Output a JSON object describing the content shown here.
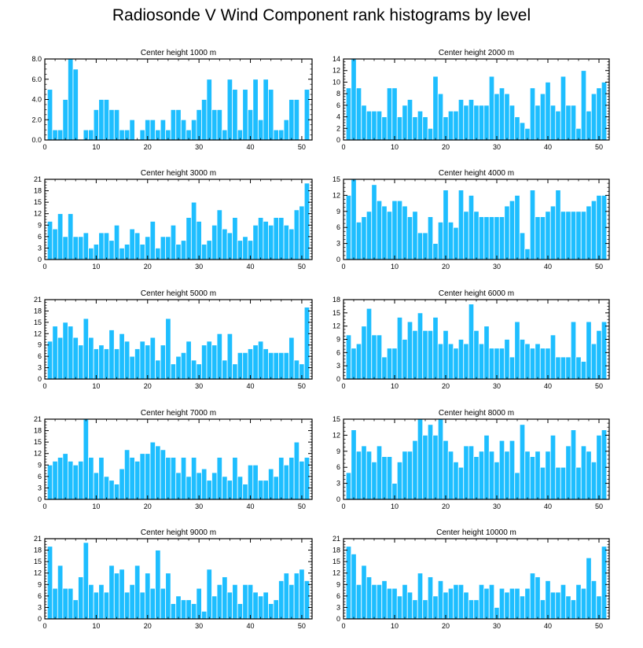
{
  "figure_title": "Radiosonde V Wind Component rank histograms by level",
  "colors": {
    "bar": "#1ebeff",
    "bar_edge": "#ffffff",
    "axis": "#000000"
  },
  "chart_data": [
    {
      "type": "bar",
      "title": "Center height 1000 m",
      "xlabel": "",
      "ylabel": "",
      "xlim": [
        0,
        52
      ],
      "ylim": [
        0,
        8
      ],
      "yticks": [
        0,
        2,
        4,
        6,
        8
      ],
      "ytick_labels": [
        "0.0",
        "2.0",
        "4.0",
        "6.0",
        "8.0"
      ],
      "xticks": [
        0,
        10,
        20,
        30,
        40,
        50
      ],
      "xtick_labels": [
        "0",
        "10",
        "20",
        "30",
        "40",
        "50"
      ],
      "x": [
        1,
        2,
        3,
        4,
        5,
        6,
        7,
        8,
        9,
        10,
        11,
        12,
        13,
        14,
        15,
        16,
        17,
        18,
        19,
        20,
        21,
        22,
        23,
        24,
        25,
        26,
        27,
        28,
        29,
        30,
        31,
        32,
        33,
        34,
        35,
        36,
        37,
        38,
        39,
        40,
        41,
        42,
        43,
        44,
        45,
        46,
        47,
        48,
        49,
        50,
        51
      ],
      "values": [
        5,
        1,
        1,
        4,
        8,
        7,
        0,
        1,
        1,
        3,
        4,
        4,
        3,
        3,
        1,
        1,
        2,
        0,
        1,
        2,
        2,
        1,
        2,
        1,
        3,
        3,
        2,
        1,
        2,
        3,
        4,
        6,
        3,
        3,
        1,
        6,
        5,
        1,
        5,
        3,
        6,
        2,
        6,
        5,
        1,
        1,
        2,
        4,
        4,
        0,
        5
      ]
    },
    {
      "type": "bar",
      "title": "Center height 2000 m",
      "xlabel": "",
      "ylabel": "",
      "xlim": [
        0,
        52
      ],
      "ylim": [
        0,
        14
      ],
      "yticks": [
        0,
        2,
        4,
        6,
        8,
        10,
        12,
        14
      ],
      "ytick_labels": [
        "0",
        "2",
        "4",
        "6",
        "8",
        "10",
        "12",
        "14"
      ],
      "xticks": [
        0,
        10,
        20,
        30,
        40,
        50
      ],
      "xtick_labels": [
        "0",
        "10",
        "20",
        "30",
        "40",
        "50"
      ],
      "x": [
        1,
        2,
        3,
        4,
        5,
        6,
        7,
        8,
        9,
        10,
        11,
        12,
        13,
        14,
        15,
        16,
        17,
        18,
        19,
        20,
        21,
        22,
        23,
        24,
        25,
        26,
        27,
        28,
        29,
        30,
        31,
        32,
        33,
        34,
        35,
        36,
        37,
        38,
        39,
        40,
        41,
        42,
        43,
        44,
        45,
        46,
        47,
        48,
        49,
        50,
        51
      ],
      "values": [
        9,
        14,
        9,
        6,
        5,
        5,
        5,
        4,
        9,
        9,
        4,
        6,
        7,
        4,
        5,
        4,
        2,
        11,
        8,
        4,
        5,
        5,
        7,
        6,
        7,
        6,
        6,
        6,
        11,
        8,
        9,
        8,
        6,
        4,
        3,
        2,
        9,
        6,
        8,
        10,
        6,
        5,
        11,
        6,
        6,
        2,
        12,
        5,
        8,
        9,
        10
      ]
    },
    {
      "type": "bar",
      "title": "Center height 3000 m",
      "xlabel": "",
      "ylabel": "",
      "xlim": [
        0,
        52
      ],
      "ylim": [
        0,
        21
      ],
      "yticks": [
        0,
        3,
        6,
        9,
        12,
        15,
        18,
        21
      ],
      "ytick_labels": [
        "0",
        "3",
        "6",
        "9",
        "12",
        "15",
        "18",
        "21"
      ],
      "xticks": [
        0,
        10,
        20,
        30,
        40,
        50
      ],
      "xtick_labels": [
        "0",
        "10",
        "20",
        "30",
        "40",
        "50"
      ],
      "x": [
        1,
        2,
        3,
        4,
        5,
        6,
        7,
        8,
        9,
        10,
        11,
        12,
        13,
        14,
        15,
        16,
        17,
        18,
        19,
        20,
        21,
        22,
        23,
        24,
        25,
        26,
        27,
        28,
        29,
        30,
        31,
        32,
        33,
        34,
        35,
        36,
        37,
        38,
        39,
        40,
        41,
        42,
        43,
        44,
        45,
        46,
        47,
        48,
        49,
        50,
        51
      ],
      "values": [
        10,
        8,
        12,
        6,
        12,
        6,
        6,
        7,
        3,
        4,
        7,
        7,
        5,
        9,
        3,
        4,
        8,
        7,
        4,
        6,
        10,
        3,
        6,
        6,
        9,
        4,
        5,
        11,
        15,
        10,
        4,
        5,
        9,
        13,
        8,
        7,
        11,
        5,
        6,
        5,
        9,
        11,
        10,
        9,
        11,
        11,
        9,
        8,
        13,
        14,
        20
      ]
    },
    {
      "type": "bar",
      "title": "Center height 4000 m",
      "xlabel": "",
      "ylabel": "",
      "xlim": [
        0,
        52
      ],
      "ylim": [
        0,
        15
      ],
      "yticks": [
        0,
        3,
        6,
        9,
        12,
        15
      ],
      "ytick_labels": [
        "0",
        "3",
        "6",
        "9",
        "12",
        "15"
      ],
      "xticks": [
        0,
        10,
        20,
        30,
        40,
        50
      ],
      "xtick_labels": [
        "0",
        "10",
        "20",
        "30",
        "40",
        "50"
      ],
      "x": [
        1,
        2,
        3,
        4,
        5,
        6,
        7,
        8,
        9,
        10,
        11,
        12,
        13,
        14,
        15,
        16,
        17,
        18,
        19,
        20,
        21,
        22,
        23,
        24,
        25,
        26,
        27,
        28,
        29,
        30,
        31,
        32,
        33,
        34,
        35,
        36,
        37,
        38,
        39,
        40,
        41,
        42,
        43,
        44,
        45,
        46,
        47,
        48,
        49,
        50,
        51
      ],
      "values": [
        12,
        15,
        7,
        8,
        9,
        14,
        11,
        10,
        9,
        11,
        11,
        10,
        8,
        9,
        5,
        5,
        8,
        3,
        7,
        13,
        7,
        6,
        13,
        9,
        12,
        9,
        8,
        8,
        8,
        8,
        8,
        10,
        11,
        12,
        5,
        2,
        13,
        8,
        8,
        9,
        10,
        13,
        9,
        9,
        9,
        9,
        9,
        10,
        11,
        12,
        12
      ]
    },
    {
      "type": "bar",
      "title": "Center height 5000 m",
      "xlabel": "",
      "ylabel": "",
      "xlim": [
        0,
        52
      ],
      "ylim": [
        0,
        21
      ],
      "yticks": [
        0,
        3,
        6,
        9,
        12,
        15,
        18,
        21
      ],
      "ytick_labels": [
        "0",
        "3",
        "6",
        "9",
        "12",
        "15",
        "18",
        "21"
      ],
      "xticks": [
        0,
        10,
        20,
        30,
        40,
        50
      ],
      "xtick_labels": [
        "0",
        "10",
        "20",
        "30",
        "40",
        "50"
      ],
      "x": [
        1,
        2,
        3,
        4,
        5,
        6,
        7,
        8,
        9,
        10,
        11,
        12,
        13,
        14,
        15,
        16,
        17,
        18,
        19,
        20,
        21,
        22,
        23,
        24,
        25,
        26,
        27,
        28,
        29,
        30,
        31,
        32,
        33,
        34,
        35,
        36,
        37,
        38,
        39,
        40,
        41,
        42,
        43,
        44,
        45,
        46,
        47,
        48,
        49,
        50,
        51
      ],
      "values": [
        10,
        14,
        11,
        15,
        14,
        11,
        9,
        16,
        11,
        8,
        9,
        8,
        13,
        8,
        12,
        10,
        6,
        8,
        10,
        9,
        11,
        5,
        9,
        16,
        4,
        6,
        7,
        10,
        5,
        4,
        9,
        10,
        9,
        12,
        5,
        12,
        4,
        7,
        7,
        8,
        9,
        10,
        8,
        7,
        7,
        7,
        7,
        11,
        5,
        4,
        19
      ]
    },
    {
      "type": "bar",
      "title": "Center height 6000 m",
      "xlabel": "",
      "ylabel": "",
      "xlim": [
        0,
        52
      ],
      "ylim": [
        0,
        18
      ],
      "yticks": [
        0,
        3,
        6,
        9,
        12,
        15,
        18
      ],
      "ytick_labels": [
        "0",
        "3",
        "6",
        "9",
        "12",
        "15",
        "18"
      ],
      "xticks": [
        0,
        10,
        20,
        30,
        40,
        50
      ],
      "xtick_labels": [
        "0",
        "10",
        "20",
        "30",
        "40",
        "50"
      ],
      "x": [
        1,
        2,
        3,
        4,
        5,
        6,
        7,
        8,
        9,
        10,
        11,
        12,
        13,
        14,
        15,
        16,
        17,
        18,
        19,
        20,
        21,
        22,
        23,
        24,
        25,
        26,
        27,
        28,
        29,
        30,
        31,
        32,
        33,
        34,
        35,
        36,
        37,
        38,
        39,
        40,
        41,
        42,
        43,
        44,
        45,
        46,
        47,
        48,
        49,
        50,
        51
      ],
      "values": [
        10,
        7,
        8,
        12,
        16,
        10,
        10,
        5,
        7,
        7,
        14,
        9,
        13,
        11,
        15,
        11,
        11,
        14,
        8,
        11,
        8,
        7,
        9,
        8,
        17,
        11,
        8,
        12,
        7,
        7,
        7,
        9,
        5,
        13,
        9,
        8,
        7,
        8,
        7,
        7,
        10,
        5,
        5,
        5,
        13,
        5,
        4,
        13,
        8,
        11,
        13
      ]
    },
    {
      "type": "bar",
      "title": "Center height 7000 m",
      "xlabel": "",
      "ylabel": "",
      "xlim": [
        0,
        52
      ],
      "ylim": [
        0,
        21
      ],
      "yticks": [
        0,
        3,
        6,
        9,
        12,
        15,
        18,
        21
      ],
      "ytick_labels": [
        "0",
        "3",
        "6",
        "9",
        "12",
        "15",
        "18",
        "21"
      ],
      "xticks": [
        0,
        10,
        20,
        30,
        40,
        50
      ],
      "xtick_labels": [
        "0",
        "10",
        "20",
        "30",
        "40",
        "50"
      ],
      "x": [
        1,
        2,
        3,
        4,
        5,
        6,
        7,
        8,
        9,
        10,
        11,
        12,
        13,
        14,
        15,
        16,
        17,
        18,
        19,
        20,
        21,
        22,
        23,
        24,
        25,
        26,
        27,
        28,
        29,
        30,
        31,
        32,
        33,
        34,
        35,
        36,
        37,
        38,
        39,
        40,
        41,
        42,
        43,
        44,
        45,
        46,
        47,
        48,
        49,
        50,
        51
      ],
      "values": [
        9,
        10,
        11,
        12,
        10,
        9,
        10,
        21,
        11,
        7,
        11,
        6,
        5,
        4,
        8,
        13,
        11,
        10,
        12,
        12,
        15,
        14,
        13,
        11,
        11,
        7,
        11,
        6,
        11,
        7,
        8,
        5,
        7,
        11,
        6,
        5,
        11,
        6,
        4,
        9,
        9,
        5,
        5,
        8,
        6,
        11,
        9,
        11,
        15,
        10,
        11
      ]
    },
    {
      "type": "bar",
      "title": "Center height 8000 m",
      "xlabel": "",
      "ylabel": "",
      "xlim": [
        0,
        52
      ],
      "ylim": [
        0,
        15
      ],
      "yticks": [
        0,
        3,
        6,
        9,
        12,
        15
      ],
      "ytick_labels": [
        "0",
        "3",
        "6",
        "9",
        "12",
        "15"
      ],
      "xticks": [
        0,
        10,
        20,
        30,
        40,
        50
      ],
      "xtick_labels": [
        "0",
        "10",
        "20",
        "30",
        "40",
        "50"
      ],
      "x": [
        1,
        2,
        3,
        4,
        5,
        6,
        7,
        8,
        9,
        10,
        11,
        12,
        13,
        14,
        15,
        16,
        17,
        18,
        19,
        20,
        21,
        22,
        23,
        24,
        25,
        26,
        27,
        28,
        29,
        30,
        31,
        32,
        33,
        34,
        35,
        36,
        37,
        38,
        39,
        40,
        41,
        42,
        43,
        44,
        45,
        46,
        47,
        48,
        49,
        50,
        51
      ],
      "values": [
        5,
        13,
        9,
        10,
        9,
        7,
        10,
        8,
        8,
        3,
        7,
        9,
        9,
        11,
        15,
        12,
        14,
        12,
        15,
        11,
        9,
        7,
        6,
        10,
        10,
        8,
        9,
        12,
        9,
        7,
        11,
        9,
        11,
        5,
        14,
        9,
        8,
        9,
        6,
        9,
        12,
        6,
        6,
        10,
        13,
        6,
        10,
        9,
        7,
        12,
        13
      ]
    },
    {
      "type": "bar",
      "title": "Center height 9000 m",
      "xlabel": "",
      "ylabel": "",
      "xlim": [
        0,
        52
      ],
      "ylim": [
        0,
        21
      ],
      "yticks": [
        0,
        3,
        6,
        9,
        12,
        15,
        18,
        21
      ],
      "ytick_labels": [
        "0",
        "3",
        "6",
        "9",
        "12",
        "15",
        "18",
        "21"
      ],
      "xticks": [
        0,
        10,
        20,
        30,
        40,
        50
      ],
      "xtick_labels": [
        "0",
        "10",
        "20",
        "30",
        "40",
        "50"
      ],
      "x": [
        1,
        2,
        3,
        4,
        5,
        6,
        7,
        8,
        9,
        10,
        11,
        12,
        13,
        14,
        15,
        16,
        17,
        18,
        19,
        20,
        21,
        22,
        23,
        24,
        25,
        26,
        27,
        28,
        29,
        30,
        31,
        32,
        33,
        34,
        35,
        36,
        37,
        38,
        39,
        40,
        41,
        42,
        43,
        44,
        45,
        46,
        47,
        48,
        49,
        50,
        51
      ],
      "values": [
        19,
        8,
        14,
        8,
        8,
        5,
        11,
        20,
        9,
        7,
        9,
        7,
        14,
        12,
        13,
        7,
        9,
        14,
        7,
        12,
        8,
        18,
        8,
        12,
        4,
        6,
        5,
        5,
        4,
        8,
        2,
        13,
        6,
        9,
        11,
        7,
        9,
        4,
        9,
        9,
        7,
        6,
        7,
        4,
        5,
        10,
        12,
        9,
        12,
        13,
        10
      ]
    },
    {
      "type": "bar",
      "title": "Center height 10000 m",
      "xlabel": "",
      "ylabel": "",
      "xlim": [
        0,
        52
      ],
      "ylim": [
        0,
        21
      ],
      "yticks": [
        0,
        3,
        6,
        9,
        12,
        15,
        18,
        21
      ],
      "ytick_labels": [
        "0",
        "3",
        "6",
        "9",
        "12",
        "15",
        "18",
        "21"
      ],
      "xticks": [
        0,
        10,
        20,
        30,
        40,
        50
      ],
      "xtick_labels": [
        "0",
        "10",
        "20",
        "30",
        "40",
        "50"
      ],
      "x": [
        1,
        2,
        3,
        4,
        5,
        6,
        7,
        8,
        9,
        10,
        11,
        12,
        13,
        14,
        15,
        16,
        17,
        18,
        19,
        20,
        21,
        22,
        23,
        24,
        25,
        26,
        27,
        28,
        29,
        30,
        31,
        32,
        33,
        34,
        35,
        36,
        37,
        38,
        39,
        40,
        41,
        42,
        43,
        44,
        45,
        46,
        47,
        48,
        49,
        50,
        51
      ],
      "values": [
        19,
        17,
        9,
        14,
        11,
        9,
        9,
        10,
        8,
        8,
        6,
        9,
        7,
        5,
        12,
        5,
        11,
        6,
        10,
        7,
        8,
        9,
        9,
        7,
        5,
        5,
        9,
        8,
        9,
        3,
        8,
        7,
        8,
        8,
        6,
        8,
        12,
        11,
        5,
        10,
        7,
        7,
        9,
        6,
        5,
        9,
        8,
        16,
        10,
        6,
        19
      ]
    }
  ]
}
